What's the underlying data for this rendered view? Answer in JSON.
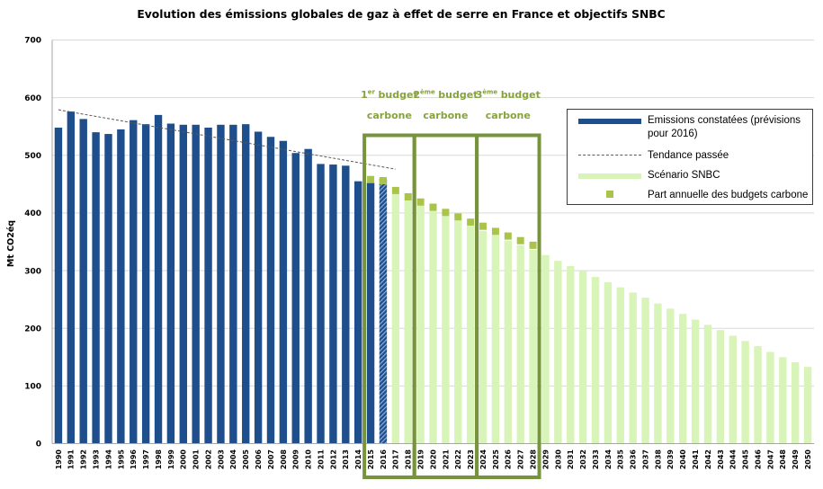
{
  "chart_data": {
    "type": "bar",
    "title": "Evolution des émissions globales de gaz à effet de serre en France et objectifs SNBC",
    "xlabel": "",
    "ylabel": "Mt CO2éq",
    "ylim": [
      0,
      700
    ],
    "yticks": [
      0,
      100,
      200,
      300,
      400,
      500,
      600,
      700
    ],
    "grid": "horizontal",
    "legend": "top-right",
    "categories": [
      1990,
      1991,
      1992,
      1993,
      1994,
      1995,
      1996,
      1997,
      1998,
      1999,
      2000,
      2001,
      2002,
      2003,
      2004,
      2005,
      2006,
      2007,
      2008,
      2009,
      2010,
      2011,
      2012,
      2013,
      2014,
      2015,
      2016,
      2017,
      2018,
      2019,
      2020,
      2021,
      2022,
      2023,
      2024,
      2025,
      2026,
      2027,
      2028,
      2029,
      2030,
      2031,
      2032,
      2033,
      2034,
      2035,
      2036,
      2037,
      2038,
      2039,
      2040,
      2041,
      2042,
      2043,
      2044,
      2045,
      2046,
      2047,
      2048,
      2049,
      2050
    ],
    "series": [
      {
        "name": "Emissions constatées (prévisions pour 2016)",
        "kind": "bar",
        "color": "#1f4e8c",
        "forecast_years": [
          2016
        ],
        "forecast_color": "#8eb0dc",
        "values": [
          548,
          576,
          563,
          540,
          537,
          545,
          561,
          554,
          570,
          555,
          553,
          553,
          548,
          553,
          553,
          554,
          541,
          532,
          525,
          504,
          511,
          485,
          484,
          482,
          455,
          452,
          460,
          null,
          null,
          null,
          null,
          null,
          null,
          null,
          null,
          null,
          null,
          null,
          null,
          null,
          null,
          null,
          null,
          null,
          null,
          null,
          null,
          null,
          null,
          null,
          null,
          null,
          null,
          null,
          null,
          null,
          null,
          null,
          null,
          null,
          null
        ]
      },
      {
        "name": "Tendance passée",
        "kind": "line",
        "line_style": "dashed",
        "color": "#595959",
        "x": [
          1990,
          2017
        ],
        "values": [
          579,
          476
        ]
      },
      {
        "name": "Scénario SNBC",
        "kind": "bar",
        "color": "#d9f4b9",
        "values": [
          null,
          null,
          null,
          null,
          null,
          null,
          null,
          null,
          null,
          null,
          null,
          null,
          null,
          null,
          null,
          null,
          null,
          null,
          null,
          null,
          null,
          null,
          null,
          null,
          null,
          null,
          null,
          433,
          423,
          413,
          404,
          395,
          386,
          377,
          369,
          361,
          352,
          344,
          336,
          327,
          317,
          308,
          299,
          289,
          280,
          271,
          262,
          253,
          243,
          234,
          225,
          215,
          206,
          197,
          187,
          178,
          169,
          159,
          150,
          141,
          133
        ]
      },
      {
        "name": "Part annuelle des budgets carbone",
        "kind": "marker",
        "marker": "square",
        "color": "#a9c34b",
        "values": [
          null,
          null,
          null,
          null,
          null,
          null,
          null,
          null,
          null,
          null,
          null,
          null,
          null,
          null,
          null,
          null,
          null,
          null,
          null,
          null,
          null,
          null,
          null,
          null,
          null,
          458,
          456,
          439,
          428,
          419,
          410,
          401,
          393,
          384,
          377,
          368,
          360,
          352,
          344,
          null,
          null,
          null,
          null,
          null,
          null,
          null,
          null,
          null,
          null,
          null,
          null,
          null,
          null,
          null,
          null,
          null,
          null,
          null,
          null,
          null,
          null
        ]
      }
    ],
    "budget_color": "#77933c",
    "budget_label_color": "#86a33c",
    "budgets": [
      {
        "number": "1",
        "suffix": "er",
        "word": "budget",
        "line2": "carbone",
        "years": [
          2015,
          2018
        ]
      },
      {
        "number": "2",
        "suffix": "ème",
        "word": "budget",
        "line2": "carbone",
        "years": [
          2019,
          2023
        ]
      },
      {
        "number": "3",
        "suffix": "ème",
        "word": "budget",
        "line2": "carbone",
        "years": [
          2024,
          2028
        ]
      }
    ]
  }
}
